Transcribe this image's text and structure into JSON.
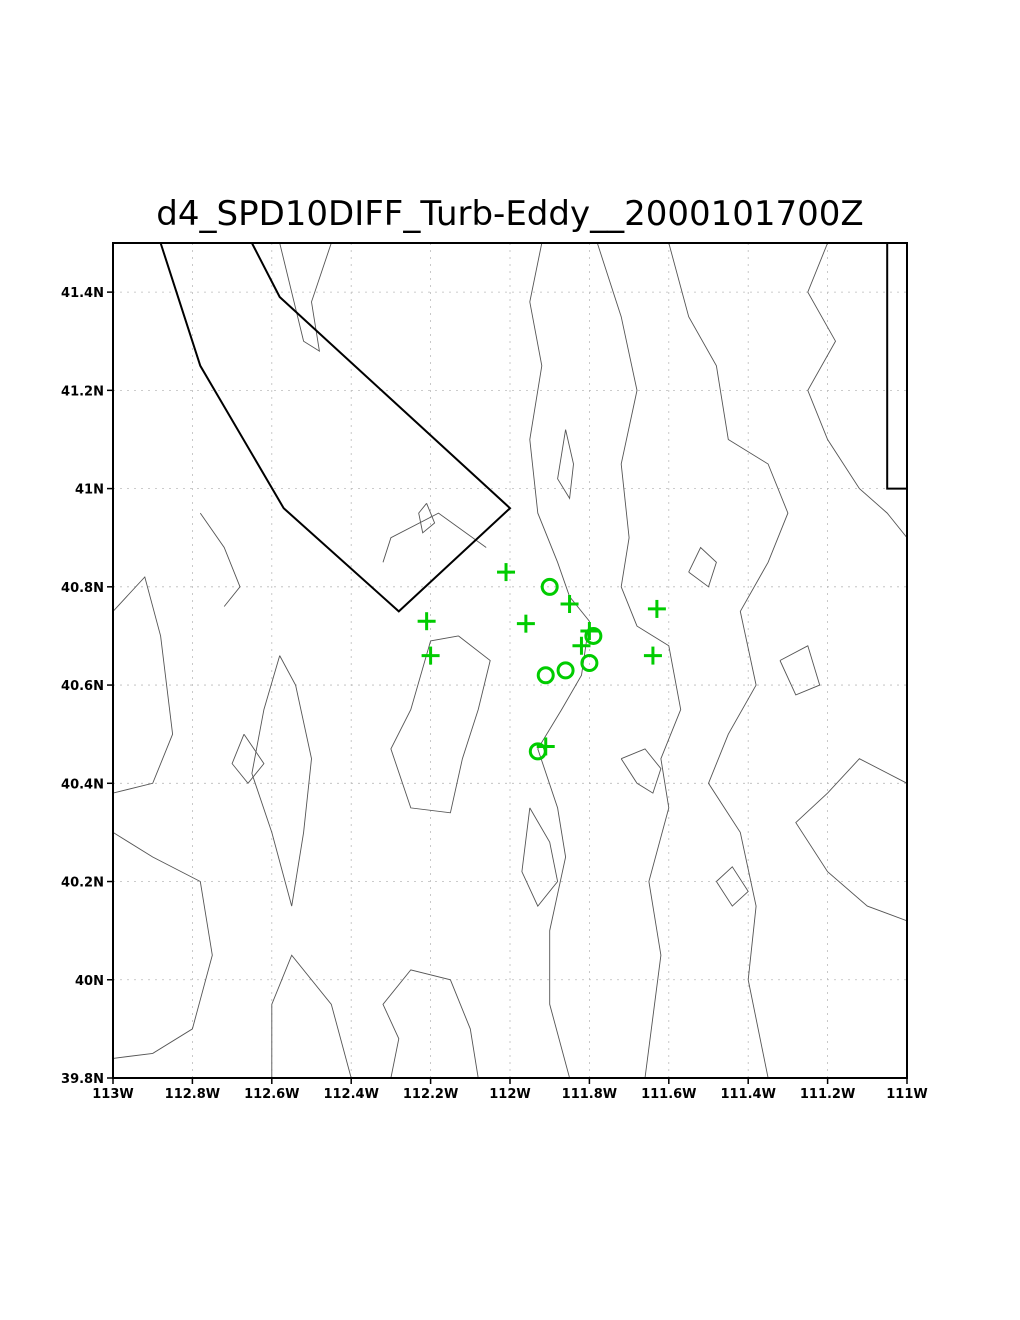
{
  "title": "d4_SPD10DIFF_Turb-Eddy__2000101700Z",
  "lon_range": [
    -113,
    -111
  ],
  "lat_range": [
    39.8,
    41.5
  ],
  "lon_ticks": [
    {
      "value": -113,
      "label": "113W"
    },
    {
      "value": -112.8,
      "label": "112.8W"
    },
    {
      "value": -112.6,
      "label": "112.6W"
    },
    {
      "value": -112.4,
      "label": "112.4W"
    },
    {
      "value": -112.2,
      "label": "112.2W"
    },
    {
      "value": -112,
      "label": "112W"
    },
    {
      "value": -111.8,
      "label": "111.8W"
    },
    {
      "value": -111.6,
      "label": "111.6W"
    },
    {
      "value": -111.4,
      "label": "111.4W"
    },
    {
      "value": -111.2,
      "label": "111.2W"
    },
    {
      "value": -111,
      "label": "111W"
    }
  ],
  "lat_ticks": [
    {
      "value": 39.8,
      "label": "39.8N"
    },
    {
      "value": 40,
      "label": "40N"
    },
    {
      "value": 40.2,
      "label": "40.2N"
    },
    {
      "value": 40.4,
      "label": "40.4N"
    },
    {
      "value": 40.6,
      "label": "40.6N"
    },
    {
      "value": 40.8,
      "label": "40.8N"
    },
    {
      "value": 41,
      "label": "41N"
    },
    {
      "value": 41.2,
      "label": "41.2N"
    },
    {
      "value": 41.4,
      "label": "41.4N"
    }
  ],
  "marker_color": "#00cc00",
  "plus_markers": [
    {
      "lon": -112.01,
      "lat": 40.83
    },
    {
      "lon": -112.21,
      "lat": 40.73
    },
    {
      "lon": -112.2,
      "lat": 40.66
    },
    {
      "lon": -111.96,
      "lat": 40.725
    },
    {
      "lon": -111.85,
      "lat": 40.765
    },
    {
      "lon": -111.8,
      "lat": 40.71
    },
    {
      "lon": -111.82,
      "lat": 40.68
    },
    {
      "lon": -111.63,
      "lat": 40.755
    },
    {
      "lon": -111.64,
      "lat": 40.66
    },
    {
      "lon": -111.91,
      "lat": 40.475
    }
  ],
  "circle_markers": [
    {
      "lon": -111.9,
      "lat": 40.8
    },
    {
      "lon": -111.79,
      "lat": 40.7
    },
    {
      "lon": -111.8,
      "lat": 40.645
    },
    {
      "lon": -111.86,
      "lat": 40.63
    },
    {
      "lon": -111.91,
      "lat": 40.62
    },
    {
      "lon": -111.93,
      "lat": 40.465
    }
  ],
  "boundaries": [
    [
      [
        -112.88,
        41.5
      ],
      [
        -112.78,
        41.25
      ],
      [
        -112.57,
        40.96
      ],
      [
        -112.28,
        40.75
      ],
      [
        -112.0,
        40.96
      ],
      [
        -112.58,
        41.39
      ],
      [
        -112.65,
        41.5
      ]
    ],
    [
      [
        -111.05,
        41.5
      ],
      [
        -111.05,
        41.0
      ],
      [
        -111.0,
        41.0
      ]
    ]
  ],
  "contours": [
    [
      [
        -111.92,
        41.5
      ],
      [
        -111.95,
        41.38
      ],
      [
        -111.92,
        41.25
      ],
      [
        -111.95,
        41.1
      ],
      [
        -111.93,
        40.95
      ],
      [
        -111.88,
        40.85
      ],
      [
        -111.85,
        40.78
      ],
      [
        -111.8,
        40.73
      ],
      [
        -111.82,
        40.62
      ],
      [
        -111.87,
        40.55
      ],
      [
        -111.93,
        40.47
      ],
      [
        -111.88,
        40.35
      ],
      [
        -111.86,
        40.25
      ],
      [
        -111.9,
        40.1
      ],
      [
        -111.9,
        39.95
      ],
      [
        -111.85,
        39.8
      ]
    ],
    [
      [
        -111.78,
        41.5
      ],
      [
        -111.72,
        41.35
      ],
      [
        -111.68,
        41.2
      ],
      [
        -111.72,
        41.05
      ],
      [
        -111.7,
        40.9
      ],
      [
        -111.72,
        40.8
      ],
      [
        -111.68,
        40.72
      ],
      [
        -111.6,
        40.68
      ],
      [
        -111.57,
        40.55
      ],
      [
        -111.62,
        40.45
      ],
      [
        -111.6,
        40.35
      ],
      [
        -111.65,
        40.2
      ],
      [
        -111.62,
        40.05
      ],
      [
        -111.66,
        39.8
      ]
    ],
    [
      [
        -111.6,
        41.5
      ],
      [
        -111.55,
        41.35
      ],
      [
        -111.48,
        41.25
      ],
      [
        -111.45,
        41.1
      ],
      [
        -111.35,
        41.05
      ],
      [
        -111.3,
        40.95
      ],
      [
        -111.35,
        40.85
      ],
      [
        -111.42,
        40.75
      ],
      [
        -111.38,
        40.6
      ],
      [
        -111.45,
        40.5
      ],
      [
        -111.5,
        40.4
      ],
      [
        -111.42,
        40.3
      ],
      [
        -111.38,
        40.15
      ],
      [
        -111.4,
        40.0
      ],
      [
        -111.35,
        39.8
      ]
    ],
    [
      [
        -111.2,
        41.5
      ],
      [
        -111.25,
        41.4
      ],
      [
        -111.18,
        41.3
      ],
      [
        -111.25,
        41.2
      ],
      [
        -111.2,
        41.1
      ],
      [
        -111.12,
        41.0
      ],
      [
        -111.05,
        40.95
      ],
      [
        -111.0,
        40.9
      ]
    ],
    [
      [
        -111.0,
        40.4
      ],
      [
        -111.12,
        40.45
      ],
      [
        -111.2,
        40.38
      ],
      [
        -111.28,
        40.32
      ],
      [
        -111.2,
        40.22
      ],
      [
        -111.1,
        40.15
      ],
      [
        -111.0,
        40.12
      ]
    ],
    [
      [
        -112.13,
        40.7
      ],
      [
        -112.2,
        40.69
      ],
      [
        -112.25,
        40.55
      ],
      [
        -112.3,
        40.47
      ],
      [
        -112.25,
        40.35
      ],
      [
        -112.15,
        40.34
      ],
      [
        -112.12,
        40.45
      ],
      [
        -112.08,
        40.55
      ],
      [
        -112.05,
        40.65
      ],
      [
        -112.13,
        40.7
      ]
    ],
    [
      [
        -112.58,
        40.66
      ],
      [
        -112.62,
        40.55
      ],
      [
        -112.65,
        40.42
      ],
      [
        -112.6,
        40.3
      ],
      [
        -112.55,
        40.15
      ],
      [
        -112.52,
        40.3
      ],
      [
        -112.5,
        40.45
      ],
      [
        -112.54,
        40.6
      ],
      [
        -112.58,
        40.66
      ]
    ],
    [
      [
        -112.67,
        40.5
      ],
      [
        -112.7,
        40.44
      ],
      [
        -112.66,
        40.4
      ],
      [
        -112.62,
        40.44
      ],
      [
        -112.67,
        40.5
      ]
    ],
    [
      [
        -113.0,
        40.3
      ],
      [
        -112.9,
        40.25
      ],
      [
        -112.78,
        40.2
      ],
      [
        -112.75,
        40.05
      ],
      [
        -112.8,
        39.9
      ],
      [
        -112.9,
        39.85
      ],
      [
        -113.0,
        39.84
      ]
    ],
    [
      [
        -113.0,
        40.75
      ],
      [
        -112.92,
        40.82
      ],
      [
        -112.88,
        40.7
      ],
      [
        -112.85,
        40.5
      ],
      [
        -112.9,
        40.4
      ],
      [
        -113.0,
        40.38
      ]
    ],
    [
      [
        -112.4,
        39.8
      ],
      [
        -112.45,
        39.95
      ],
      [
        -112.55,
        40.05
      ],
      [
        -112.6,
        39.95
      ],
      [
        -112.6,
        39.8
      ]
    ],
    [
      [
        -112.3,
        39.8
      ],
      [
        -112.28,
        39.88
      ],
      [
        -112.32,
        39.95
      ],
      [
        -112.25,
        40.02
      ],
      [
        -112.15,
        40.0
      ],
      [
        -112.1,
        39.9
      ],
      [
        -112.08,
        39.8
      ]
    ],
    [
      [
        -112.06,
        40.88
      ],
      [
        -112.18,
        40.95
      ],
      [
        -112.3,
        40.9
      ],
      [
        -112.32,
        40.85
      ]
    ],
    [
      [
        -112.78,
        40.95
      ],
      [
        -112.72,
        40.88
      ],
      [
        -112.68,
        40.8
      ],
      [
        -112.72,
        40.76
      ]
    ],
    [
      [
        -112.21,
        40.97
      ],
      [
        -112.19,
        40.93
      ],
      [
        -112.22,
        40.91
      ],
      [
        -112.23,
        40.95
      ],
      [
        -112.21,
        40.97
      ]
    ],
    [
      [
        -111.95,
        40.35
      ],
      [
        -111.9,
        40.28
      ],
      [
        -111.88,
        40.2
      ],
      [
        -111.93,
        40.15
      ],
      [
        -111.97,
        40.22
      ],
      [
        -111.95,
        40.35
      ]
    ],
    [
      [
        -111.72,
        40.45
      ],
      [
        -111.68,
        40.4
      ],
      [
        -111.64,
        40.38
      ],
      [
        -111.62,
        40.43
      ],
      [
        -111.66,
        40.47
      ],
      [
        -111.72,
        40.45
      ]
    ],
    [
      [
        -111.86,
        41.12
      ],
      [
        -111.84,
        41.05
      ],
      [
        -111.85,
        40.98
      ],
      [
        -111.88,
        41.02
      ],
      [
        -111.86,
        41.12
      ]
    ],
    [
      [
        -111.55,
        40.83
      ],
      [
        -111.5,
        40.8
      ],
      [
        -111.48,
        40.85
      ],
      [
        -111.52,
        40.88
      ],
      [
        -111.55,
        40.83
      ]
    ],
    [
      [
        -111.32,
        40.65
      ],
      [
        -111.28,
        40.58
      ],
      [
        -111.22,
        40.6
      ],
      [
        -111.25,
        40.68
      ],
      [
        -111.32,
        40.65
      ]
    ],
    [
      [
        -111.48,
        40.2
      ],
      [
        -111.44,
        40.15
      ],
      [
        -111.4,
        40.18
      ],
      [
        -111.44,
        40.23
      ],
      [
        -111.48,
        40.2
      ]
    ],
    [
      [
        -112.58,
        41.5
      ],
      [
        -112.52,
        41.3
      ],
      [
        -112.48,
        41.28
      ],
      [
        -112.5,
        41.38
      ],
      [
        -112.45,
        41.5
      ]
    ]
  ]
}
